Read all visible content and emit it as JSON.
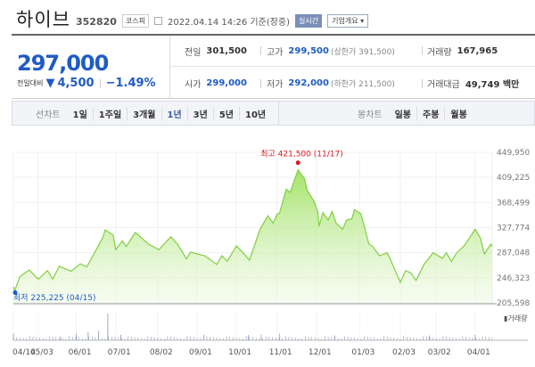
{
  "header": {
    "name": "하이브",
    "code": "352820",
    "market": "코스피",
    "datetime": "2022.04.14 14:26 기준(장중)",
    "realtime": "실시간",
    "company_info": "기업개요 ▾"
  },
  "quote": {
    "price": "297,000",
    "change_label": "전일대비",
    "change_icon": "down-triangle",
    "change": "4,500",
    "change_pct": "−1.49%"
  },
  "stats": {
    "prev": {
      "label": "전일",
      "value": "301,500"
    },
    "high": {
      "label": "고가",
      "value": "299,500",
      "extra": "(상한가 391,500)"
    },
    "volume": {
      "label": "거래량",
      "value": "167,965"
    },
    "open": {
      "label": "시가",
      "value": "299,000"
    },
    "low": {
      "label": "저가",
      "value": "292,000",
      "extra": "(하한가 211,500)"
    },
    "amount": {
      "label": "거래대금",
      "value": "49,749 백만"
    }
  },
  "tabs": {
    "line_label": "선차트",
    "line": [
      "1일",
      "1주일",
      "3개월",
      "1년",
      "3년",
      "5년",
      "10년"
    ],
    "active": "1년",
    "candle_label": "봉차트",
    "candle": [
      "일봉",
      "주봉",
      "월봉"
    ]
  },
  "colors": {
    "accent": "#1f5bc4",
    "line": "#7fcf3f",
    "high": "#e0141e",
    "low": "#1f5bc4"
  },
  "chart_data": {
    "type": "area",
    "ylim": [
      205598,
      449950
    ],
    "yticks": [
      "449,950",
      "409,225",
      "368,499",
      "327,774",
      "287,048",
      "246,323",
      "205,598"
    ],
    "xticks": [
      "04/14",
      "05/03",
      "06/01",
      "07/01",
      "08/02",
      "09/01",
      "10/01",
      "11/01",
      "12/01",
      "01/03",
      "02/03",
      "03/02",
      "04/01"
    ],
    "xrange": [
      "2021-04-14",
      "2022-04-14"
    ],
    "high_label": "최고 421,500 (11/17)",
    "high_point": [
      "2021-11-17",
      421500
    ],
    "low_label": "최저 225,225 (04/15)",
    "low_point": [
      "2021-04-15",
      225225
    ],
    "volume_label": "거래량",
    "points": [
      [
        "2021-04-14",
        232000
      ],
      [
        "2021-04-15",
        225225
      ],
      [
        "2021-04-19",
        248000
      ],
      [
        "2021-04-26",
        259000
      ],
      [
        "2021-05-03",
        244000
      ],
      [
        "2021-05-10",
        258000
      ],
      [
        "2021-05-14",
        244000
      ],
      [
        "2021-05-19",
        265000
      ],
      [
        "2021-05-28",
        257000
      ],
      [
        "2021-06-04",
        269000
      ],
      [
        "2021-06-09",
        264000
      ],
      [
        "2021-06-21",
        311000
      ],
      [
        "2021-06-23",
        324000
      ],
      [
        "2021-06-29",
        316000
      ],
      [
        "2021-07-01",
        292000
      ],
      [
        "2021-07-06",
        306000
      ],
      [
        "2021-07-09",
        297000
      ],
      [
        "2021-07-16",
        320000
      ],
      [
        "2021-07-26",
        301000
      ],
      [
        "2021-08-03",
        292000
      ],
      [
        "2021-08-12",
        313000
      ],
      [
        "2021-08-17",
        301000
      ],
      [
        "2021-08-24",
        277000
      ],
      [
        "2021-08-27",
        288000
      ],
      [
        "2021-09-07",
        282000
      ],
      [
        "2021-09-16",
        268000
      ],
      [
        "2021-09-20",
        282000
      ],
      [
        "2021-09-24",
        273000
      ],
      [
        "2021-10-01",
        298000
      ],
      [
        "2021-10-06",
        287000
      ],
      [
        "2021-10-11",
        275000
      ],
      [
        "2021-10-19",
        325000
      ],
      [
        "2021-10-25",
        347000
      ],
      [
        "2021-10-29",
        335000
      ],
      [
        "2021-11-01",
        349000
      ],
      [
        "2021-11-03",
        352000
      ],
      [
        "2021-11-08",
        390000
      ],
      [
        "2021-11-11",
        385000
      ],
      [
        "2021-11-17",
        421500
      ],
      [
        "2021-11-22",
        407000
      ],
      [
        "2021-11-24",
        388000
      ],
      [
        "2021-11-29",
        371000
      ],
      [
        "2021-12-02",
        354000
      ],
      [
        "2021-12-03",
        330000
      ],
      [
        "2021-12-06",
        352000
      ],
      [
        "2021-12-10",
        340000
      ],
      [
        "2021-12-13",
        354000
      ],
      [
        "2021-12-16",
        335000
      ],
      [
        "2021-12-21",
        325000
      ],
      [
        "2021-12-24",
        340000
      ],
      [
        "2021-12-28",
        342000
      ],
      [
        "2021-12-30",
        357000
      ],
      [
        "2022-01-04",
        350000
      ],
      [
        "2022-01-10",
        301000
      ],
      [
        "2022-01-13",
        297000
      ],
      [
        "2022-01-18",
        282000
      ],
      [
        "2022-01-24",
        287000
      ],
      [
        "2022-01-27",
        273000
      ],
      [
        "2022-02-03",
        239000
      ],
      [
        "2022-02-07",
        258000
      ],
      [
        "2022-02-11",
        254000
      ],
      [
        "2022-02-15",
        242000
      ],
      [
        "2022-02-21",
        268000
      ],
      [
        "2022-02-28",
        287000
      ],
      [
        "2022-03-07",
        278000
      ],
      [
        "2022-03-10",
        287000
      ],
      [
        "2022-03-14",
        273000
      ],
      [
        "2022-03-18",
        287000
      ],
      [
        "2022-03-24",
        299000
      ],
      [
        "2022-04-01",
        325000
      ],
      [
        "2022-04-05",
        311000
      ],
      [
        "2022-04-08",
        285000
      ],
      [
        "2022-04-13",
        301000
      ],
      [
        "2022-04-14",
        297000
      ]
    ],
    "volume_relative": [
      [
        "2021-04-14",
        0.25
      ],
      [
        "2021-05-20",
        0.15
      ],
      [
        "2021-06-01",
        0.25
      ],
      [
        "2021-06-10",
        0.3
      ],
      [
        "2021-06-18",
        0.35
      ],
      [
        "2021-06-25",
        1.0
      ],
      [
        "2021-07-05",
        0.2
      ],
      [
        "2021-09-06",
        0.2
      ],
      [
        "2021-10-10",
        0.2
      ],
      [
        "2021-10-20",
        0.22
      ],
      [
        "2021-11-03",
        0.25
      ],
      [
        "2021-12-15",
        0.18
      ],
      [
        "2022-02-25",
        0.18
      ],
      [
        "2022-04-01",
        0.2
      ]
    ]
  }
}
